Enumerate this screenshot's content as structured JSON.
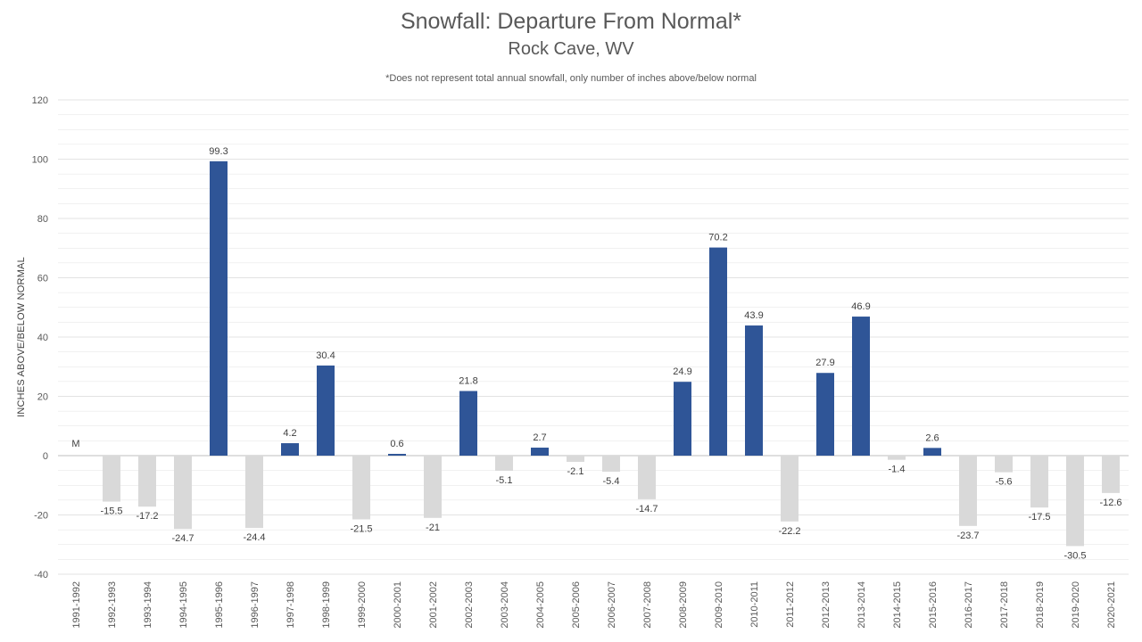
{
  "chart_data": {
    "type": "bar",
    "title": "Snowfall: Departure From Normal*",
    "subtitle": "Rock Cave, WV",
    "note": "*Does not represent  total annual snowfall, only number of inches above/below normal",
    "ylabel": "INCHES ABOVE/BELOW NORMAL",
    "xlabel": "",
    "ylim": [
      -40,
      120
    ],
    "yticks": [
      -40,
      -20,
      0,
      20,
      40,
      60,
      80,
      100,
      120
    ],
    "grid": true,
    "missing_label": "M",
    "colors": {
      "positive": "#2f5597",
      "negative": "#d9d9d9",
      "grid": "#e3e3e3",
      "axis": "#bfbfbf"
    },
    "categories": [
      "1991-1992",
      "1992-1993",
      "1993-1994",
      "1994-1995",
      "1995-1996",
      "1996-1997",
      "1997-1998",
      "1998-1999",
      "1999-2000",
      "2000-2001",
      "2001-2002",
      "2002-2003",
      "2003-2004",
      "2004-2005",
      "2005-2006",
      "2006-2007",
      "2007-2008",
      "2008-2009",
      "2009-2010",
      "2010-2011",
      "2011-2012",
      "2012-2013",
      "2013-2014",
      "2014-2015",
      "2015-2016",
      "2016-2017",
      "2017-2018",
      "2018-2019",
      "2019-2020",
      "2020-2021"
    ],
    "values": [
      null,
      -15.5,
      -17.2,
      -24.7,
      99.3,
      -24.4,
      4.2,
      30.4,
      -21.5,
      0.6,
      -21,
      21.8,
      -5.1,
      2.7,
      -2.1,
      -5.4,
      -14.7,
      24.9,
      70.2,
      43.9,
      -22.2,
      27.9,
      46.9,
      -1.4,
      2.6,
      -23.7,
      -5.6,
      -17.5,
      -30.5,
      -12.6
    ]
  }
}
